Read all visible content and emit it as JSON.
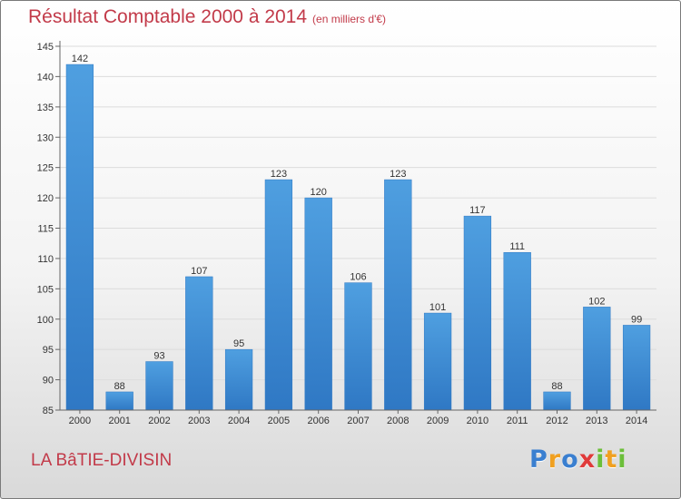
{
  "header": {
    "title": "Résultat Comptable 2000 à 2014",
    "subtitle": "(en milliers d'€)"
  },
  "commune": "LA BâTIE-DIVISIN",
  "logo": {
    "letters": [
      {
        "ch": "P",
        "color": "#3a7fd0"
      },
      {
        "ch": "r",
        "color": "#f0a020"
      },
      {
        "ch": "o",
        "color": "#3a7fd0"
      },
      {
        "ch": "x",
        "color": "#e03a3a"
      },
      {
        "ch": "i",
        "color": "#6cbf3a"
      },
      {
        "ch": "t",
        "color": "#f0a020"
      },
      {
        "ch": "i",
        "color": "#6cbf3a"
      }
    ]
  },
  "chart_data": {
    "type": "bar",
    "title": "Résultat Comptable 2000 à 2014",
    "subtitle": "(en milliers d'€)",
    "xlabel": "",
    "ylabel": "",
    "categories": [
      "2000",
      "2001",
      "2002",
      "2003",
      "2004",
      "2005",
      "2006",
      "2007",
      "2008",
      "2009",
      "2010",
      "2011",
      "2012",
      "2013",
      "2014"
    ],
    "values": [
      142,
      88,
      93,
      107,
      95,
      123,
      120,
      106,
      123,
      101,
      117,
      111,
      88,
      102,
      99
    ],
    "ylim": [
      85,
      145
    ],
    "yticks": [
      85,
      90,
      95,
      100,
      105,
      110,
      115,
      120,
      125,
      130,
      135,
      140,
      145
    ],
    "grid": true,
    "bar_color": "#4f9fe0",
    "bar_color_dark": "#2f78c4"
  }
}
